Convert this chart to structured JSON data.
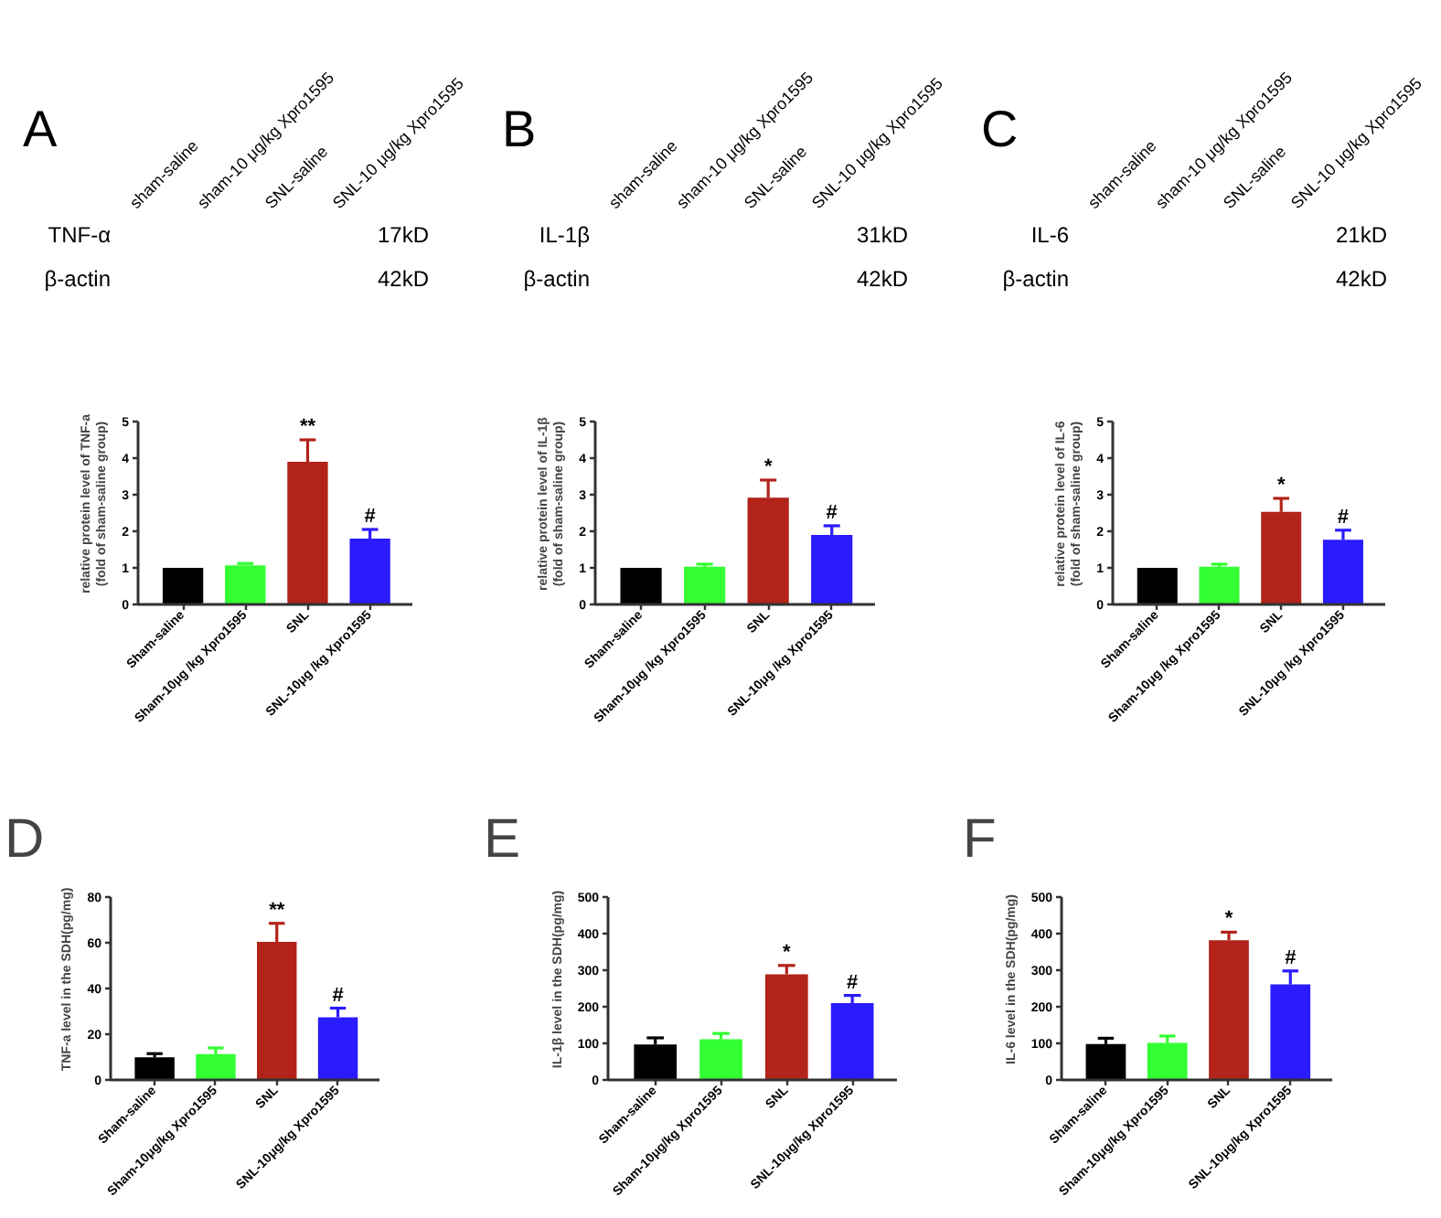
{
  "chart_data": [
    {
      "type": "other",
      "title": "A",
      "categories": [
        "sham-saline",
        "sham-10 μg/kg Xpro1595",
        "SNL-saline",
        "SNL-10 μg/kg Xpro1595"
      ],
      "y_categories": [
        "TNF-α",
        "β-actin"
      ],
      "y2_categories": [
        "17kD",
        "42kD"
      ]
    },
    {
      "type": "other",
      "title": "B",
      "categories": [
        "sham-saline",
        "sham-10 μg/kg Xpro1595",
        "SNL-saline",
        "SNL-10 μg/kg Xpro1595"
      ],
      "y_categories": [
        "IL-1β",
        "β-actin"
      ],
      "y2_categories": [
        "31kD",
        "42kD"
      ]
    },
    {
      "type": "other",
      "title": "C",
      "categories": [
        "sham-saline",
        "sham-10 μg/kg Xpro1595",
        "SNL-saline",
        "SNL-10 μg/kg Xpro1595"
      ],
      "y_categories": [
        "IL-6",
        "β-actin"
      ],
      "y2_categories": [
        "21kD",
        "42kD"
      ]
    },
    {
      "type": "bar",
      "ylabel": "relative protein level of TNF-a\n(fold of sham-saline group)",
      "categories": [
        "Sham-saline",
        "Sham-10μg /kg Xpro1595",
        "SNL",
        "SNL-10μg /kg Xpro1595"
      ],
      "values": [
        1.0,
        1.07,
        3.9,
        1.8
      ],
      "colors": [
        "#000000",
        "#33ff33",
        "#b2231a",
        "#2b1bff"
      ],
      "errors": [
        null,
        [
          1.07,
          1.12
        ],
        [
          3.9,
          4.5
        ],
        [
          1.8,
          2.05
        ]
      ],
      "ylim": [
        0,
        5
      ],
      "yticks": [
        0,
        1,
        2,
        3,
        4,
        5
      ],
      "annotations": [
        {
          "text": "**",
          "x": "SNL",
          "y": 4.5
        },
        {
          "text": "#",
          "x": "SNL-10μg /kg Xpro1595",
          "y": 2.05
        }
      ]
    },
    {
      "type": "bar",
      "ylabel": "relative protein level of IL-1β\n(fold of sham-saline group)",
      "categories": [
        "Sham-saline",
        "Sham-10μg /kg Xpro1595",
        "SNL",
        "SNL-10μg /kg Xpro1595"
      ],
      "values": [
        1.0,
        1.03,
        2.92,
        1.9
      ],
      "colors": [
        "#000000",
        "#33ff33",
        "#b2231a",
        "#2b1bff"
      ],
      "errors": [
        null,
        [
          1.03,
          1.1
        ],
        [
          2.92,
          3.4
        ],
        [
          1.9,
          2.15
        ]
      ],
      "ylim": [
        0,
        5
      ],
      "yticks": [
        0,
        1,
        2,
        3,
        4,
        5
      ],
      "annotations": [
        {
          "text": "*",
          "x": "SNL",
          "y": 3.4
        },
        {
          "text": "#",
          "x": "SNL-10μg /kg Xpro1595",
          "y": 2.15
        }
      ]
    },
    {
      "type": "bar",
      "ylabel": "relative protein level of IL-6\n(fold of sham-saline group)",
      "categories": [
        "Sham-saline",
        "Sham-10μg /kg Xpro1595",
        "SNL",
        "SNL-10μg /kg Xpro1595"
      ],
      "values": [
        1.0,
        1.03,
        2.53,
        1.77
      ],
      "colors": [
        "#000000",
        "#33ff33",
        "#b2231a",
        "#2b1bff"
      ],
      "errors": [
        null,
        [
          1.03,
          1.1
        ],
        [
          2.53,
          2.9
        ],
        [
          1.77,
          2.03
        ]
      ],
      "ylim": [
        0,
        5
      ],
      "yticks": [
        0,
        1,
        2,
        3,
        4,
        5
      ],
      "annotations": [
        {
          "text": "*",
          "x": "SNL",
          "y": 2.9
        },
        {
          "text": "#",
          "x": "SNL-10μg /kg Xpro1595",
          "y": 2.03
        }
      ]
    },
    {
      "type": "bar",
      "title": "D",
      "ylabel": "TNF-a level in the SDH(pg/mg)",
      "categories": [
        "Sham-saline",
        "Sham-10μg/kg Xpro1595",
        "SNL",
        "SNL-10μg/kg Xpro1595"
      ],
      "values": [
        9.9,
        11.3,
        60.4,
        27.4
      ],
      "colors": [
        "#000000",
        "#33ff33",
        "#b2231a",
        "#2b1bff"
      ],
      "errors": [
        [
          9.9,
          11.5
        ],
        [
          11.3,
          14
        ],
        [
          60.4,
          68.5
        ],
        [
          27.4,
          31.4
        ]
      ],
      "ylim": [
        0,
        80
      ],
      "yticks": [
        0,
        20,
        40,
        60,
        80
      ],
      "annotations": [
        {
          "text": "**",
          "x": "SNL",
          "y": 68.5
        },
        {
          "text": "#",
          "x": "SNL-10μg/kg Xpro1595",
          "y": 31.4
        }
      ]
    },
    {
      "type": "bar",
      "title": "E",
      "ylabel": "IL-1β level in the SDH(pg/mg)",
      "categories": [
        "Sham-saline",
        "Sham-10μg/kg Xpro1595",
        "SNL",
        "SNL-10μg/kg Xpro1595"
      ],
      "values": [
        97,
        111,
        289,
        210
      ],
      "colors": [
        "#000000",
        "#33ff33",
        "#b2231a",
        "#2b1bff"
      ],
      "errors": [
        [
          97,
          115
        ],
        [
          111,
          127
        ],
        [
          289,
          313
        ],
        [
          210,
          231
        ]
      ],
      "ylim": [
        0,
        500
      ],
      "yticks": [
        0,
        100,
        200,
        300,
        400,
        500
      ],
      "annotations": [
        {
          "text": "*",
          "x": "SNL",
          "y": 313
        },
        {
          "text": "#",
          "x": "SNL-10μg/kg Xpro1595",
          "y": 231
        }
      ]
    },
    {
      "type": "bar",
      "title": "F",
      "ylabel": "IL-6 level in the SDH(pg/mg)",
      "categories": [
        "Sham-saline",
        "Sham-10μg/kg Xpro1595",
        "SNL",
        "SNL-10μg/kg Xpro1595"
      ],
      "values": [
        98,
        101,
        382,
        261
      ],
      "colors": [
        "#000000",
        "#33ff33",
        "#b2231a",
        "#2b1bff"
      ],
      "errors": [
        [
          98,
          114
        ],
        [
          101,
          120
        ],
        [
          382,
          404
        ],
        [
          261,
          298
        ]
      ],
      "ylim": [
        0,
        500
      ],
      "yticks": [
        0,
        100,
        200,
        300,
        400,
        500
      ],
      "annotations": [
        {
          "text": "*",
          "x": "SNL",
          "y": 404
        },
        {
          "text": "#",
          "x": "SNL-10μg/kg Xpro1595",
          "y": 298
        }
      ]
    }
  ]
}
